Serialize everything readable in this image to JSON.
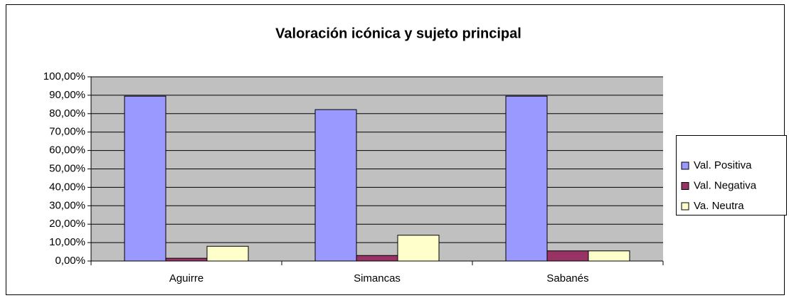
{
  "chart_data": {
    "type": "bar",
    "title": "Valoración icónica y sujeto principal",
    "categories": [
      "Aguirre",
      "Simancas",
      "Sabanés"
    ],
    "series": [
      {
        "name": "Val. Positiva",
        "color": "#9999ff",
        "values": [
          89.5,
          82.2,
          89.5
        ]
      },
      {
        "name": "Val. Negativa",
        "color": "#993366",
        "values": [
          1.5,
          3,
          5.5
        ]
      },
      {
        "name": "Va. Neutra",
        "color": "#ffffcc",
        "values": [
          8,
          14,
          5.5
        ]
      }
    ],
    "ylim": [
      0,
      100
    ],
    "yticks": [
      {
        "value": 0,
        "label": "0,00%"
      },
      {
        "value": 10,
        "label": "10,00%"
      },
      {
        "value": 20,
        "label": "20,00%"
      },
      {
        "value": 30,
        "label": "30,00%"
      },
      {
        "value": 40,
        "label": "40,00%"
      },
      {
        "value": 50,
        "label": "50,00%"
      },
      {
        "value": 60,
        "label": "60,00%"
      },
      {
        "value": 70,
        "label": "70,00%"
      },
      {
        "value": 80,
        "label": "80,00%"
      },
      {
        "value": 90,
        "label": "90,00%"
      },
      {
        "value": 100,
        "label": "100,00%"
      }
    ],
    "grid": true,
    "legend": "right"
  }
}
